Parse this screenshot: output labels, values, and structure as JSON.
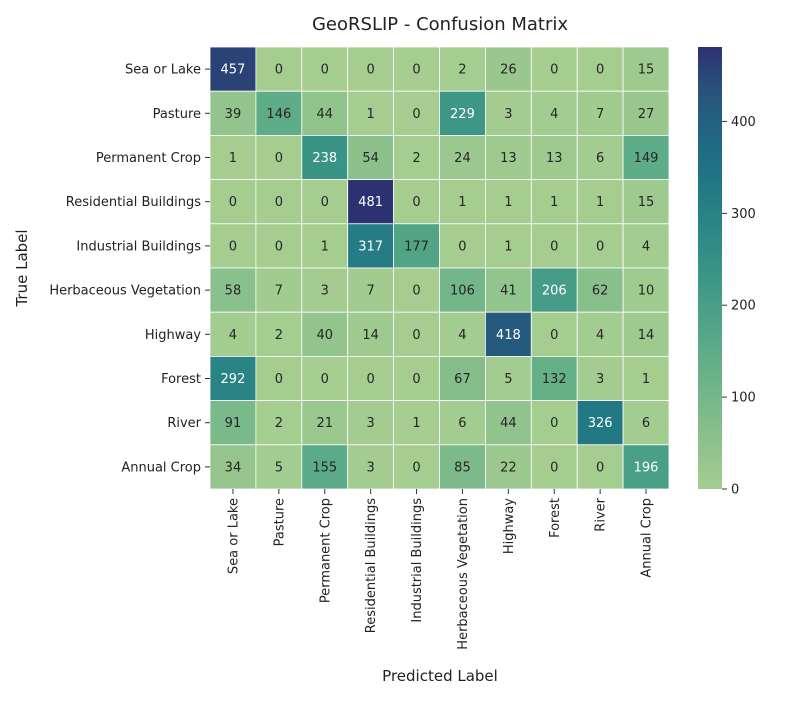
{
  "chart_data": {
    "type": "heatmap",
    "title": "GeoRSLIP - Confusion Matrix",
    "xlabel": "Predicted Label",
    "ylabel": "True Label",
    "row_labels": [
      "Sea or Lake",
      "Pasture",
      "Permanent Crop",
      "Residential Buildings",
      "Industrial Buildings",
      "Herbaceous Vegetation",
      "Highway",
      "Forest",
      "River",
      "Annual Crop"
    ],
    "col_labels": [
      "Sea or Lake",
      "Pasture",
      "Permanent Crop",
      "Residential Buildings",
      "Industrial Buildings",
      "Herbaceous Vegetation",
      "Highway",
      "Forest",
      "River",
      "Annual Crop"
    ],
    "matrix": [
      [
        457,
        0,
        0,
        0,
        0,
        2,
        26,
        0,
        0,
        15
      ],
      [
        39,
        146,
        44,
        1,
        0,
        229,
        3,
        4,
        7,
        27
      ],
      [
        1,
        0,
        238,
        54,
        2,
        24,
        13,
        13,
        6,
        149
      ],
      [
        0,
        0,
        0,
        481,
        0,
        1,
        1,
        1,
        1,
        15
      ],
      [
        0,
        0,
        1,
        317,
        177,
        0,
        1,
        0,
        0,
        4
      ],
      [
        58,
        7,
        3,
        7,
        0,
        106,
        41,
        206,
        62,
        10
      ],
      [
        4,
        2,
        40,
        14,
        0,
        4,
        418,
        0,
        4,
        14
      ],
      [
        292,
        0,
        0,
        0,
        0,
        67,
        5,
        132,
        3,
        1
      ],
      [
        91,
        2,
        21,
        3,
        1,
        6,
        44,
        0,
        326,
        6
      ],
      [
        34,
        5,
        155,
        3,
        0,
        85,
        22,
        0,
        0,
        196
      ]
    ],
    "colorbar": {
      "min": 0,
      "max": 481,
      "ticks": [
        0,
        100,
        200,
        300,
        400
      ]
    },
    "colormap": "crest",
    "colors": {
      "low": "#a5cd90",
      "high": "#2c3172",
      "annotation_dark": "#262626",
      "annotation_light": "#ffffff",
      "cell_border": "#ffffff"
    }
  }
}
